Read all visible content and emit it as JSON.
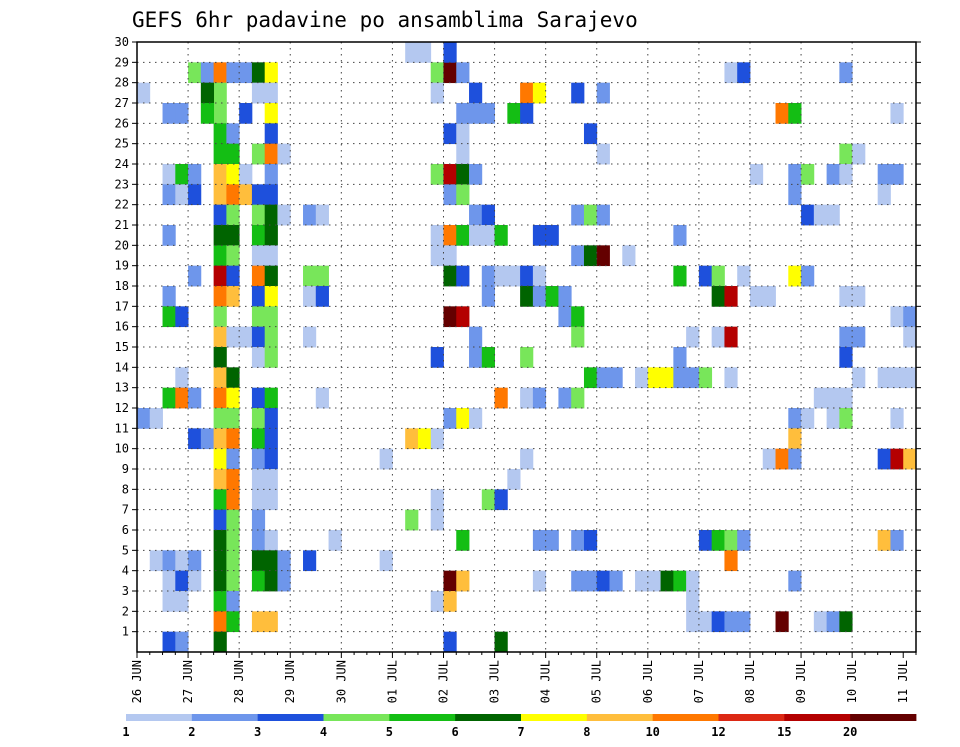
{
  "chart_data": {
    "type": "heatmap",
    "title": "GEFS 6hr padavine po ansamblima Sarajevo",
    "x_tick_labels": [
      "26 JUN",
      "27 JUN",
      "28 JUN",
      "29 JUN",
      "30 JUN",
      "01 JUL",
      "02 JUL",
      "03 JUL",
      "04 JUL",
      "05 JUL",
      "06 JUL",
      "07 JUL",
      "08 JUL",
      "09 JUL",
      "10 JUL",
      "11 JUL"
    ],
    "y_tick_labels": [
      "1",
      "2",
      "3",
      "4",
      "5",
      "6",
      "7",
      "8",
      "9",
      "10",
      "11",
      "12",
      "13",
      "14",
      "15",
      "16",
      "17",
      "18",
      "19",
      "20",
      "21",
      "22",
      "23",
      "24",
      "25",
      "26",
      "27",
      "28",
      "29",
      "30"
    ],
    "members_ylim": [
      0,
      30
    ],
    "time_steps": 61,
    "time_step_hours": 6,
    "grid": true,
    "grid_style": "dotted",
    "colorbar": {
      "position": "bottom",
      "levels": [
        "1",
        "2",
        "3",
        "4",
        "5",
        "6",
        "7",
        "8",
        "10",
        "12",
        "15",
        "20"
      ],
      "colors": [
        "#b4c8f0",
        "#6e96eb",
        "#1e50dc",
        "#78e65a",
        "#14be14",
        "#006400",
        "#ffff00",
        "#ffbe3c",
        "#ff7800",
        "#dc2814",
        "#b40000",
        "#640000"
      ]
    },
    "cells_format": "[time_step_index, ensemble_member, color_class]",
    "cells": [
      [
        4,
        29,
        4
      ],
      [
        5,
        29,
        2
      ],
      [
        6,
        29,
        9
      ],
      [
        6,
        28,
        4
      ],
      [
        6,
        27,
        4
      ],
      [
        5,
        28,
        6
      ],
      [
        5,
        27,
        5
      ],
      [
        7,
        29,
        2
      ],
      [
        8,
        29,
        2
      ],
      [
        9,
        29,
        6
      ],
      [
        10,
        29,
        7
      ],
      [
        10,
        28,
        1
      ],
      [
        10,
        27,
        7
      ],
      [
        9,
        28,
        1
      ],
      [
        21,
        30,
        1
      ],
      [
        22,
        30,
        1
      ],
      [
        23,
        29,
        4
      ],
      [
        24,
        29,
        12
      ],
      [
        24,
        30,
        3
      ],
      [
        25,
        29,
        2
      ],
      [
        0,
        28,
        1
      ],
      [
        23,
        28,
        1
      ],
      [
        26,
        28,
        3
      ],
      [
        30,
        28,
        9
      ],
      [
        31,
        28,
        7
      ],
      [
        34,
        28,
        3
      ],
      [
        36,
        28,
        2
      ],
      [
        46,
        29,
        1
      ],
      [
        47,
        29,
        3
      ],
      [
        55,
        29,
        2
      ],
      [
        2,
        27,
        2
      ],
      [
        3,
        27,
        2
      ],
      [
        6,
        26,
        5
      ],
      [
        7,
        26,
        2
      ],
      [
        8,
        27,
        3
      ],
      [
        10,
        26,
        3
      ],
      [
        24,
        26,
        3
      ],
      [
        25,
        26,
        1
      ],
      [
        25,
        27,
        2
      ],
      [
        26,
        27,
        2
      ],
      [
        27,
        27,
        2
      ],
      [
        29,
        27,
        5
      ],
      [
        30,
        27,
        3
      ],
      [
        35,
        26,
        3
      ],
      [
        50,
        27,
        9
      ],
      [
        51,
        27,
        5
      ],
      [
        59,
        27,
        1
      ],
      [
        6,
        25,
        5
      ],
      [
        7,
        25,
        5
      ],
      [
        9,
        25,
        4
      ],
      [
        10,
        25,
        9
      ],
      [
        11,
        25,
        1
      ],
      [
        25,
        25,
        1
      ],
      [
        36,
        25,
        1
      ],
      [
        55,
        25,
        4
      ],
      [
        56,
        25,
        1
      ],
      [
        2,
        24,
        1
      ],
      [
        3,
        24,
        5
      ],
      [
        4,
        24,
        2
      ],
      [
        6,
        24,
        8
      ],
      [
        7,
        24,
        7
      ],
      [
        8,
        24,
        1
      ],
      [
        10,
        24,
        2
      ],
      [
        23,
        24,
        4
      ],
      [
        24,
        24,
        11
      ],
      [
        25,
        24,
        6
      ],
      [
        26,
        24,
        2
      ],
      [
        48,
        24,
        1
      ],
      [
        51,
        24,
        2
      ],
      [
        52,
        24,
        4
      ],
      [
        54,
        24,
        2
      ],
      [
        55,
        24,
        1
      ],
      [
        58,
        24,
        2
      ],
      [
        59,
        24,
        2
      ],
      [
        2,
        23,
        2
      ],
      [
        3,
        23,
        1
      ],
      [
        4,
        23,
        3
      ],
      [
        6,
        23,
        8
      ],
      [
        7,
        23,
        9
      ],
      [
        8,
        23,
        8
      ],
      [
        9,
        23,
        3
      ],
      [
        10,
        23,
        3
      ],
      [
        24,
        23,
        2
      ],
      [
        25,
        23,
        4
      ],
      [
        51,
        23,
        2
      ],
      [
        58,
        23,
        1
      ],
      [
        6,
        22,
        3
      ],
      [
        7,
        22,
        4
      ],
      [
        9,
        22,
        4
      ],
      [
        10,
        22,
        6
      ],
      [
        11,
        22,
        1
      ],
      [
        13,
        22,
        2
      ],
      [
        14,
        22,
        1
      ],
      [
        26,
        22,
        2
      ],
      [
        27,
        22,
        3
      ],
      [
        34,
        22,
        2
      ],
      [
        35,
        22,
        4
      ],
      [
        36,
        22,
        2
      ],
      [
        52,
        22,
        3
      ],
      [
        53,
        22,
        1
      ],
      [
        54,
        22,
        1
      ],
      [
        2,
        21,
        2
      ],
      [
        6,
        21,
        6
      ],
      [
        7,
        21,
        6
      ],
      [
        9,
        21,
        5
      ],
      [
        10,
        21,
        6
      ],
      [
        23,
        21,
        1
      ],
      [
        24,
        21,
        9
      ],
      [
        25,
        21,
        5
      ],
      [
        26,
        21,
        1
      ],
      [
        27,
        21,
        1
      ],
      [
        28,
        21,
        5
      ],
      [
        31,
        21,
        3
      ],
      [
        32,
        21,
        3
      ],
      [
        42,
        21,
        2
      ],
      [
        6,
        20,
        5
      ],
      [
        7,
        20,
        4
      ],
      [
        9,
        20,
        1
      ],
      [
        10,
        20,
        1
      ],
      [
        23,
        20,
        1
      ],
      [
        24,
        20,
        1
      ],
      [
        34,
        20,
        2
      ],
      [
        35,
        20,
        6
      ],
      [
        36,
        20,
        12
      ],
      [
        38,
        20,
        1
      ],
      [
        4,
        19,
        2
      ],
      [
        6,
        19,
        11
      ],
      [
        7,
        19,
        3
      ],
      [
        9,
        19,
        9
      ],
      [
        10,
        19,
        6
      ],
      [
        13,
        19,
        4
      ],
      [
        14,
        19,
        4
      ],
      [
        24,
        19,
        6
      ],
      [
        25,
        19,
        3
      ],
      [
        27,
        19,
        2
      ],
      [
        28,
        19,
        1
      ],
      [
        29,
        19,
        1
      ],
      [
        30,
        19,
        3
      ],
      [
        31,
        19,
        1
      ],
      [
        42,
        19,
        5
      ],
      [
        44,
        19,
        3
      ],
      [
        45,
        19,
        4
      ],
      [
        47,
        19,
        1
      ],
      [
        51,
        19,
        7
      ],
      [
        52,
        19,
        2
      ],
      [
        2,
        18,
        2
      ],
      [
        6,
        18,
        9
      ],
      [
        7,
        18,
        8
      ],
      [
        9,
        18,
        3
      ],
      [
        10,
        18,
        7
      ],
      [
        13,
        18,
        1
      ],
      [
        14,
        18,
        3
      ],
      [
        27,
        18,
        2
      ],
      [
        30,
        18,
        6
      ],
      [
        31,
        18,
        2
      ],
      [
        32,
        18,
        5
      ],
      [
        33,
        18,
        2
      ],
      [
        45,
        18,
        6
      ],
      [
        46,
        18,
        11
      ],
      [
        48,
        18,
        1
      ],
      [
        49,
        18,
        1
      ],
      [
        55,
        18,
        1
      ],
      [
        56,
        18,
        1
      ],
      [
        2,
        17,
        5
      ],
      [
        3,
        17,
        3
      ],
      [
        6,
        17,
        4
      ],
      [
        9,
        17,
        4
      ],
      [
        10,
        17,
        4
      ],
      [
        24,
        17,
        12
      ],
      [
        25,
        17,
        11
      ],
      [
        33,
        17,
        2
      ],
      [
        34,
        17,
        5
      ],
      [
        59,
        17,
        1
      ],
      [
        60,
        17,
        2
      ],
      [
        6,
        16,
        8
      ],
      [
        7,
        16,
        1
      ],
      [
        8,
        16,
        1
      ],
      [
        9,
        16,
        3
      ],
      [
        10,
        16,
        4
      ],
      [
        13,
        16,
        1
      ],
      [
        26,
        16,
        2
      ],
      [
        34,
        16,
        4
      ],
      [
        43,
        16,
        1
      ],
      [
        45,
        16,
        1
      ],
      [
        46,
        16,
        11
      ],
      [
        55,
        16,
        2
      ],
      [
        56,
        16,
        2
      ],
      [
        60,
        16,
        1
      ],
      [
        6,
        15,
        6
      ],
      [
        9,
        15,
        1
      ],
      [
        10,
        15,
        4
      ],
      [
        23,
        15,
        3
      ],
      [
        26,
        15,
        2
      ],
      [
        27,
        15,
        5
      ],
      [
        30,
        15,
        4
      ],
      [
        42,
        15,
        2
      ],
      [
        55,
        15,
        3
      ],
      [
        3,
        14,
        1
      ],
      [
        6,
        14,
        8
      ],
      [
        7,
        14,
        6
      ],
      [
        35,
        14,
        5
      ],
      [
        36,
        14,
        2
      ],
      [
        37,
        14,
        2
      ],
      [
        39,
        14,
        1
      ],
      [
        40,
        14,
        7
      ],
      [
        41,
        14,
        7
      ],
      [
        42,
        14,
        2
      ],
      [
        43,
        14,
        2
      ],
      [
        44,
        14,
        4
      ],
      [
        46,
        14,
        1
      ],
      [
        56,
        14,
        1
      ],
      [
        58,
        14,
        1
      ],
      [
        59,
        14,
        1
      ],
      [
        60,
        14,
        1
      ],
      [
        2,
        13,
        5
      ],
      [
        3,
        13,
        9
      ],
      [
        4,
        13,
        2
      ],
      [
        6,
        13,
        9
      ],
      [
        7,
        13,
        7
      ],
      [
        9,
        13,
        3
      ],
      [
        10,
        13,
        5
      ],
      [
        14,
        13,
        1
      ],
      [
        28,
        13,
        9
      ],
      [
        30,
        13,
        1
      ],
      [
        31,
        13,
        2
      ],
      [
        33,
        13,
        2
      ],
      [
        34,
        13,
        4
      ],
      [
        53,
        13,
        1
      ],
      [
        54,
        13,
        1
      ],
      [
        55,
        13,
        1
      ],
      [
        0,
        12,
        2
      ],
      [
        1,
        12,
        1
      ],
      [
        6,
        12,
        4
      ],
      [
        7,
        12,
        4
      ],
      [
        9,
        12,
        4
      ],
      [
        10,
        12,
        3
      ],
      [
        24,
        12,
        2
      ],
      [
        25,
        12,
        7
      ],
      [
        26,
        12,
        1
      ],
      [
        51,
        12,
        2
      ],
      [
        52,
        12,
        1
      ],
      [
        54,
        12,
        1
      ],
      [
        55,
        12,
        4
      ],
      [
        59,
        12,
        1
      ],
      [
        4,
        11,
        3
      ],
      [
        5,
        11,
        2
      ],
      [
        6,
        11,
        8
      ],
      [
        7,
        11,
        9
      ],
      [
        9,
        11,
        5
      ],
      [
        10,
        11,
        3
      ],
      [
        21,
        11,
        8
      ],
      [
        22,
        11,
        7
      ],
      [
        23,
        11,
        1
      ],
      [
        51,
        11,
        8
      ],
      [
        6,
        10,
        7
      ],
      [
        7,
        10,
        2
      ],
      [
        9,
        10,
        2
      ],
      [
        10,
        10,
        3
      ],
      [
        19,
        10,
        1
      ],
      [
        30,
        10,
        1
      ],
      [
        49,
        10,
        1
      ],
      [
        50,
        10,
        9
      ],
      [
        51,
        10,
        2
      ],
      [
        58,
        10,
        3
      ],
      [
        59,
        10,
        11
      ],
      [
        60,
        10,
        8
      ],
      [
        6,
        9,
        8
      ],
      [
        7,
        9,
        9
      ],
      [
        9,
        9,
        1
      ],
      [
        10,
        9,
        1
      ],
      [
        29,
        9,
        1
      ],
      [
        6,
        8,
        5
      ],
      [
        7,
        8,
        9
      ],
      [
        9,
        8,
        1
      ],
      [
        10,
        8,
        1
      ],
      [
        23,
        8,
        1
      ],
      [
        27,
        8,
        4
      ],
      [
        28,
        8,
        3
      ],
      [
        6,
        7,
        3
      ],
      [
        7,
        7,
        4
      ],
      [
        9,
        7,
        2
      ],
      [
        21,
        7,
        4
      ],
      [
        23,
        7,
        1
      ],
      [
        6,
        6,
        6
      ],
      [
        7,
        6,
        4
      ],
      [
        9,
        6,
        2
      ],
      [
        10,
        6,
        1
      ],
      [
        15,
        6,
        1
      ],
      [
        25,
        6,
        5
      ],
      [
        31,
        6,
        2
      ],
      [
        32,
        6,
        2
      ],
      [
        34,
        6,
        2
      ],
      [
        35,
        6,
        3
      ],
      [
        44,
        6,
        3
      ],
      [
        45,
        6,
        5
      ],
      [
        46,
        6,
        4
      ],
      [
        47,
        6,
        2
      ],
      [
        58,
        6,
        8
      ],
      [
        59,
        6,
        2
      ],
      [
        1,
        5,
        1
      ],
      [
        2,
        5,
        2
      ],
      [
        3,
        5,
        1
      ],
      [
        4,
        5,
        2
      ],
      [
        6,
        5,
        6
      ],
      [
        7,
        5,
        4
      ],
      [
        9,
        5,
        6
      ],
      [
        10,
        5,
        6
      ],
      [
        11,
        5,
        2
      ],
      [
        13,
        5,
        3
      ],
      [
        19,
        5,
        1
      ],
      [
        46,
        5,
        9
      ],
      [
        2,
        4,
        1
      ],
      [
        3,
        4,
        3
      ],
      [
        4,
        4,
        1
      ],
      [
        6,
        4,
        6
      ],
      [
        7,
        4,
        4
      ],
      [
        9,
        4,
        5
      ],
      [
        10,
        4,
        6
      ],
      [
        11,
        4,
        2
      ],
      [
        24,
        4,
        12
      ],
      [
        25,
        4,
        8
      ],
      [
        31,
        4,
        1
      ],
      [
        34,
        4,
        2
      ],
      [
        35,
        4,
        2
      ],
      [
        36,
        4,
        3
      ],
      [
        37,
        4,
        2
      ],
      [
        39,
        4,
        1
      ],
      [
        40,
        4,
        1
      ],
      [
        41,
        4,
        6
      ],
      [
        42,
        4,
        5
      ],
      [
        43,
        4,
        1
      ],
      [
        51,
        4,
        2
      ],
      [
        2,
        3,
        1
      ],
      [
        3,
        3,
        1
      ],
      [
        6,
        3,
        5
      ],
      [
        7,
        3,
        2
      ],
      [
        23,
        3,
        1
      ],
      [
        24,
        3,
        8
      ],
      [
        43,
        3,
        1
      ],
      [
        6,
        2,
        9
      ],
      [
        7,
        2,
        5
      ],
      [
        9,
        2,
        8
      ],
      [
        10,
        2,
        8
      ],
      [
        43,
        2,
        1
      ],
      [
        44,
        2,
        1
      ],
      [
        45,
        2,
        3
      ],
      [
        46,
        2,
        2
      ],
      [
        47,
        2,
        2
      ],
      [
        50,
        2,
        12
      ],
      [
        53,
        2,
        1
      ],
      [
        54,
        2,
        2
      ],
      [
        55,
        2,
        6
      ],
      [
        2,
        1,
        3
      ],
      [
        3,
        1,
        2
      ],
      [
        6,
        1,
        6
      ],
      [
        24,
        1,
        3
      ],
      [
        28,
        1,
        6
      ]
    ]
  }
}
